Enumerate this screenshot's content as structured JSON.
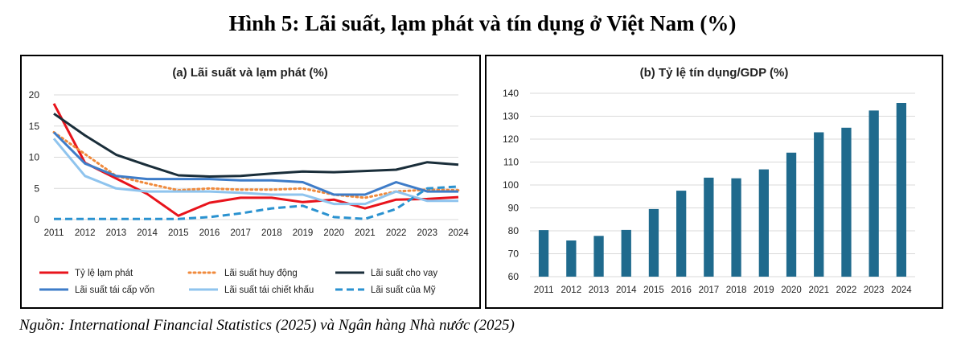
{
  "figure": {
    "title": "Hình 5: Lãi suất, lạm phát và tín dụng ở Việt Nam (%)",
    "source": "Nguồn: International Financial Statistics (2025) và Ngân hàng Nhà nước (2025)"
  },
  "chart_data": [
    {
      "type": "line",
      "title": "(a) Lãi suất và lạm phát (%)",
      "x": [
        "2011",
        "2012",
        "2013",
        "2014",
        "2015",
        "2016",
        "2017",
        "2018",
        "2019",
        "2020",
        "2021",
        "2022",
        "2023",
        "2024"
      ],
      "ylim": [
        0,
        20
      ],
      "yticks": [
        0,
        5,
        10,
        15,
        20
      ],
      "grid": true,
      "legend": "bottom",
      "series": [
        {
          "name": "Tỷ lệ lạm phát",
          "color": "#e8141c",
          "dash": "solid",
          "values": [
            18.6,
            9.1,
            6.6,
            4.1,
            0.6,
            2.7,
            3.5,
            3.5,
            2.8,
            3.2,
            1.8,
            3.2,
            3.3,
            3.6
          ]
        },
        {
          "name": "Lãi suất huy động",
          "color": "#f08a3c",
          "dash": "dotted",
          "values": [
            14.0,
            10.5,
            7.0,
            5.8,
            4.7,
            5.0,
            4.8,
            4.8,
            5.0,
            4.0,
            3.5,
            4.5,
            4.8,
            4.7
          ]
        },
        {
          "name": "Lãi suất cho vay",
          "color": "#1a2e3a",
          "dash": "solid",
          "values": [
            17.0,
            13.5,
            10.4,
            8.7,
            7.1,
            6.9,
            7.0,
            7.4,
            7.7,
            7.6,
            7.8,
            8.0,
            9.2,
            8.8
          ]
        },
        {
          "name": "Lãi suất tái cấp vốn",
          "color": "#3e7cc8",
          "dash": "solid",
          "values": [
            14.0,
            9.0,
            7.0,
            6.5,
            6.5,
            6.5,
            6.3,
            6.3,
            6.0,
            4.0,
            4.0,
            6.0,
            4.5,
            4.5
          ]
        },
        {
          "name": "Lãi suất tái chiết khấu",
          "color": "#8fc4ee",
          "dash": "solid",
          "values": [
            13.0,
            7.0,
            5.0,
            4.5,
            4.5,
            4.5,
            4.3,
            4.0,
            4.0,
            2.5,
            2.5,
            4.5,
            3.0,
            3.0
          ]
        },
        {
          "name": "Lãi suất của Mỹ",
          "color": "#2a92d0",
          "dash": "dashed",
          "values": [
            0.1,
            0.1,
            0.1,
            0.1,
            0.1,
            0.4,
            1.0,
            1.8,
            2.2,
            0.4,
            0.1,
            1.7,
            5.0,
            5.3
          ]
        }
      ]
    },
    {
      "type": "bar",
      "title": "(b) Tỷ lệ tín dụng/GDP (%)",
      "categories": [
        "2011",
        "2012",
        "2013",
        "2014",
        "2015",
        "2016",
        "2017",
        "2018",
        "2019",
        "2020",
        "2021",
        "2022",
        "2023",
        "2024"
      ],
      "values": [
        80.3,
        75.8,
        77.8,
        80.4,
        89.5,
        97.5,
        103.2,
        102.9,
        106.8,
        114.1,
        123.0,
        125.0,
        132.5,
        135.8
      ],
      "ylim": [
        60,
        140
      ],
      "yticks": [
        60,
        70,
        80,
        90,
        100,
        110,
        120,
        130,
        140
      ],
      "grid": true,
      "color": "#1f6a8d"
    }
  ]
}
